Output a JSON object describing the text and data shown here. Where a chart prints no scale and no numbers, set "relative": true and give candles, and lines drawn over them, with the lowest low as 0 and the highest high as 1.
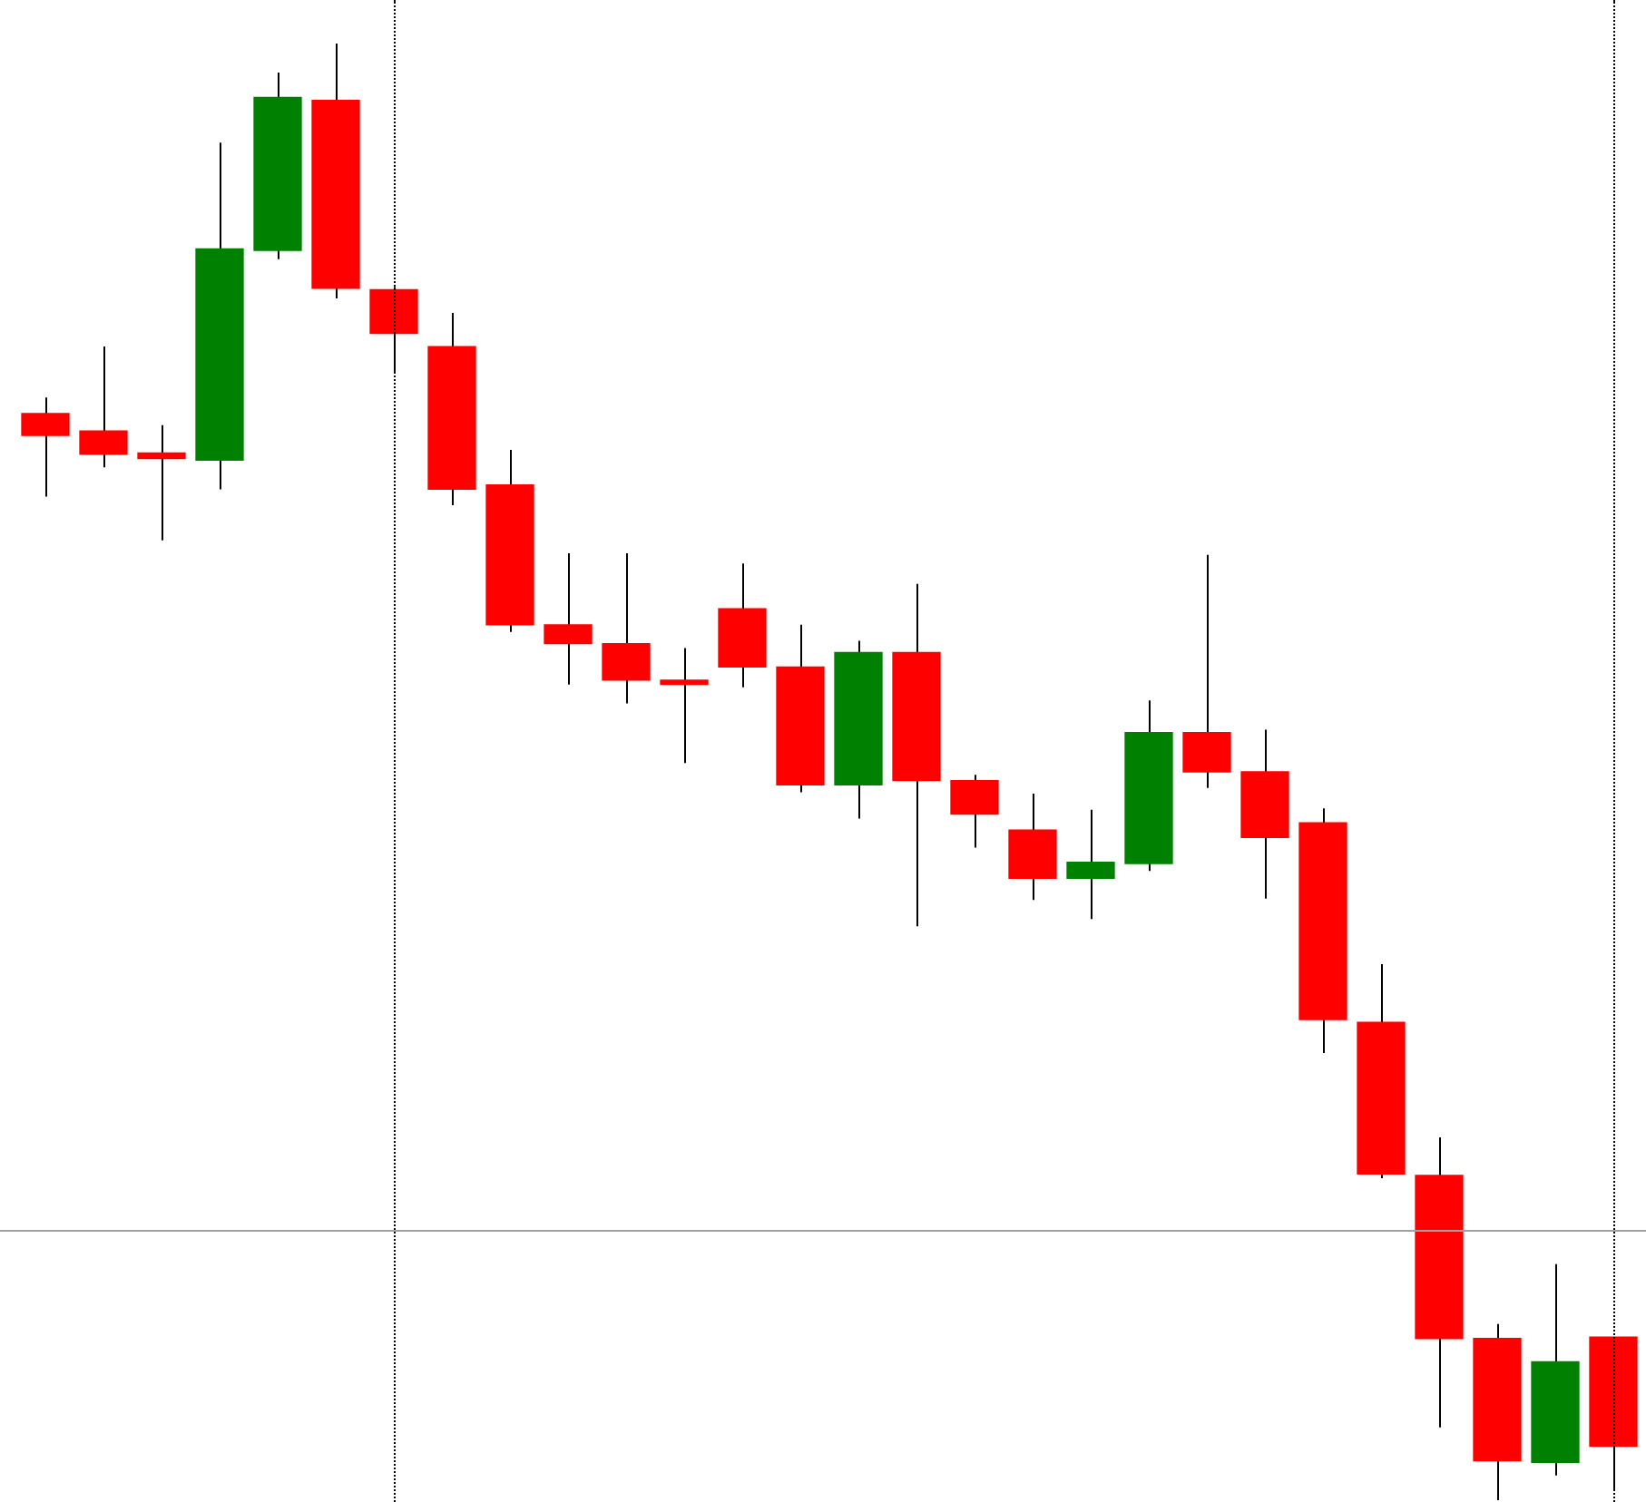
{
  "chart_data": {
    "type": "candlestick",
    "relative": true,
    "categories": [
      null,
      null,
      null,
      null,
      null,
      null,
      null,
      null,
      null,
      null,
      null,
      null,
      null,
      null,
      null,
      null,
      null,
      null,
      null,
      null,
      null,
      null,
      null,
      null,
      null,
      null,
      null,
      null
    ],
    "ohlc": [
      [
        0.746,
        0.757,
        0.689,
        0.731
      ],
      [
        0.734,
        0.792,
        0.709,
        0.718
      ],
      [
        0.719,
        0.738,
        0.659,
        0.715
      ],
      [
        0.714,
        0.932,
        0.694,
        0.859
      ],
      [
        0.858,
        0.98,
        0.852,
        0.963
      ],
      [
        0.961,
        1,
        0.825,
        0.832
      ],
      [
        0.831,
        0.833,
        0.774,
        0.801
      ],
      [
        0.792,
        0.815,
        0.683,
        0.694
      ],
      [
        0.697,
        0.721,
        0.596,
        0.601
      ],
      [
        0.601,
        0.65,
        0.56,
        0.588
      ],
      [
        0.588,
        0.65,
        0.547,
        0.563
      ],
      [
        0.563,
        0.585,
        0.506,
        0.56
      ],
      [
        0.612,
        0.643,
        0.558,
        0.572
      ],
      [
        0.572,
        0.601,
        0.486,
        0.491
      ],
      [
        0.491,
        0.59,
        0.468,
        0.582
      ],
      [
        0.582,
        0.629,
        0.394,
        0.494
      ],
      [
        0.494,
        0.498,
        0.448,
        0.471
      ],
      [
        0.46,
        0.485,
        0.412,
        0.427
      ],
      [
        0.427,
        0.474,
        0.399,
        0.438
      ],
      [
        0.437,
        0.549,
        0.432,
        0.527
      ],
      [
        0.527,
        0.649,
        0.489,
        0.5
      ],
      [
        0.5,
        0.529,
        0.413,
        0.455
      ],
      [
        0.465,
        0.475,
        0.307,
        0.33
      ],
      [
        0.328,
        0.368,
        0.221,
        0.224
      ],
      [
        0.223,
        0.249,
        0.05,
        0.111
      ],
      [
        0.111,
        0.121,
        0,
        0.027
      ],
      [
        0.026,
        0.162,
        0.017,
        0.095
      ],
      [
        0.112,
        0.112,
        0.007,
        0.037
      ]
    ],
    "colors": [
      "#ff0000",
      "#ff0000",
      "#ff0000",
      "#008000",
      "#008000",
      "#ff0000",
      "#ff0000",
      "#ff0000",
      "#ff0000",
      "#ff0000",
      "#ff0000",
      "#ff0000",
      "#ff0000",
      "#ff0000",
      "#008000",
      "#ff0000",
      "#ff0000",
      "#ff0000",
      "#008000",
      "#008000",
      "#ff0000",
      "#ff0000",
      "#ff0000",
      "#ff0000",
      "#ff0000",
      "#ff0000",
      "#008000",
      "#ff0000"
    ],
    "ref_lines": [
      {
        "axis": "y",
        "value": 0.185,
        "color": "#a0a0a0"
      }
    ],
    "legend": false
  }
}
